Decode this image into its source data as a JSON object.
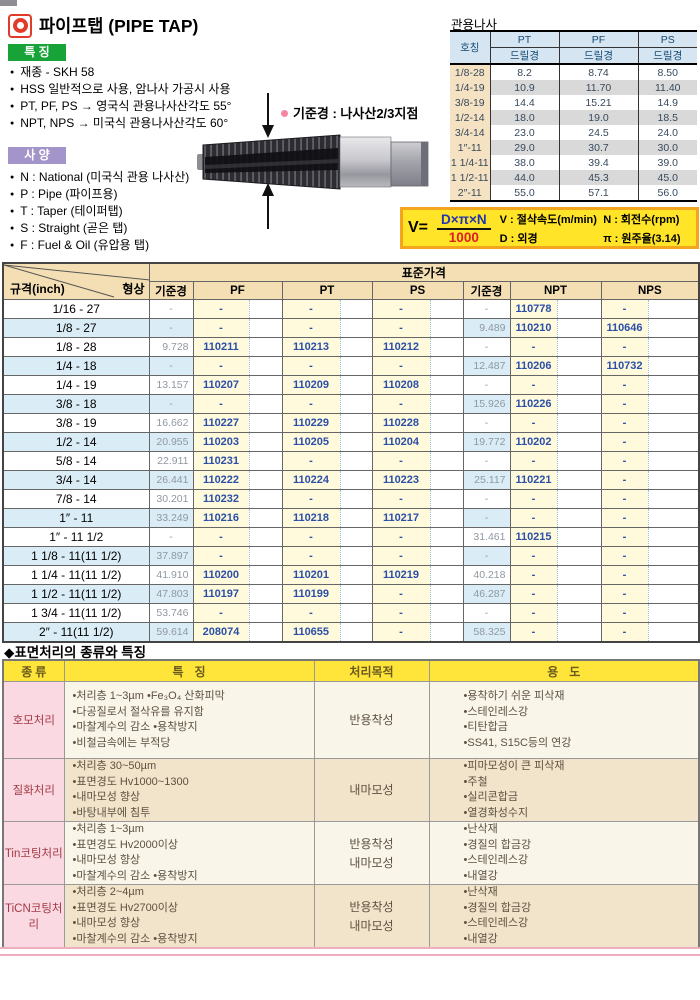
{
  "colors": {
    "brand-red": "#e23c28",
    "badge-green": "#17a338",
    "badge-purple": "#a394c9",
    "formula-yellow": "#ffe427",
    "formula-border": "#f2a51d",
    "formula-blue": "#2336b0",
    "formula-red": "#e01c24",
    "table-header-tan": "#f3dfb3",
    "row-blue": "#daecf6",
    "price-yellow": "#fffadb",
    "code-blue": "#2b4fa8",
    "thread-header-blue": "#d5e5f1",
    "designation-tan": "#f5e2c2",
    "row-gray": "#d9d9d9",
    "surface-header-yellow": "#ffe43a",
    "kind-pink": "#fbd9e2",
    "kind-red": "#a13a46",
    "pink-line": "#eeaebe"
  },
  "header": {
    "title": "파이프탭 (PIPE TAP)"
  },
  "features": {
    "badge": "특 징",
    "items": [
      "재종 - SKH 58",
      "HSS 일반적으로 사용, 암나사 가공시 사용",
      "PT, PF, PS → 영국식 관용나사산각도 55°",
      "NPT, NPS → 미국식 관용나사산각도 60°"
    ]
  },
  "specs": {
    "badge": "사 양",
    "items": [
      "N : National (미국식 관용 나사산)",
      "P : Pipe (파이프용)",
      "T : Taper (테이퍼탭)",
      "S : Straight (곧은 탭)",
      "F : Fuel & Oil (유압용 탭)"
    ]
  },
  "tap_annotation": {
    "label": "기준경 : 나사산2/3지점"
  },
  "thread_table": {
    "title": "관용나사",
    "col_headers": [
      "호칭",
      "PT",
      "PF",
      "PS"
    ],
    "subheader": "드릴경",
    "rows": [
      {
        "name": "1/8-28",
        "pt": "8.2",
        "pf": "8.74",
        "ps": "8.50"
      },
      {
        "name": "1/4-19",
        "pt": "10.9",
        "pf": "11.70",
        "ps": "11.40"
      },
      {
        "name": "3/8-19",
        "pt": "14.4",
        "pf": "15.21",
        "ps": "14.9"
      },
      {
        "name": "1/2-14",
        "pt": "18.0",
        "pf": "19.0",
        "ps": "18.5"
      },
      {
        "name": "3/4-14",
        "pt": "23.0",
        "pf": "24.5",
        "ps": "24.0"
      },
      {
        "name": "1″-11",
        "pt": "29.0",
        "pf": "30.7",
        "ps": "30.0"
      },
      {
        "name": "1 1/4-11",
        "pt": "38.0",
        "pf": "39.4",
        "ps": "39.0"
      },
      {
        "name": "1 1/2-11",
        "pt": "44.0",
        "pf": "45.3",
        "ps": "45.0"
      },
      {
        "name": "2″-11",
        "pt": "55.0",
        "pf": "57.1",
        "ps": "56.0"
      }
    ]
  },
  "formula": {
    "v_label": "V=",
    "numerator": "D×π×N",
    "denominator": "1000",
    "legend": [
      "V : 절삭속도(m/min)",
      "N : 회전수(rpm)",
      "D : 외경",
      "π : 원주율(3.14)"
    ]
  },
  "price_table": {
    "band_title": "표준가격",
    "diag_left": "규격(inch)",
    "diag_right": "형상",
    "headers": {
      "base": "기준경",
      "pf": "PF",
      "pt": "PT",
      "ps": "PS",
      "base2": "기준경",
      "npt": "NPT",
      "nps": "NPS"
    },
    "rows": [
      {
        "spec": "1/16 - 27",
        "base1": "-",
        "pf": "-",
        "pt": "-",
        "ps": "-",
        "base2": "-",
        "npt": "110778",
        "nps": "-"
      },
      {
        "spec": "1/8 - 27",
        "base1": "-",
        "pf": "-",
        "pt": "-",
        "ps": "-",
        "base2": "9.489",
        "npt": "110210",
        "nps": "110646"
      },
      {
        "spec": "1/8 - 28",
        "base1": "9.728",
        "pf": "110211",
        "pt": "110213",
        "ps": "110212",
        "base2": "-",
        "npt": "-",
        "nps": "-"
      },
      {
        "spec": "1/4 - 18",
        "base1": "-",
        "pf": "-",
        "pt": "-",
        "ps": "-",
        "base2": "12.487",
        "npt": "110206",
        "nps": "110732"
      },
      {
        "spec": "1/4 - 19",
        "base1": "13.157",
        "pf": "110207",
        "pt": "110209",
        "ps": "110208",
        "base2": "-",
        "npt": "-",
        "nps": "-"
      },
      {
        "spec": "3/8 - 18",
        "base1": "-",
        "pf": "-",
        "pt": "-",
        "ps": "-",
        "base2": "15.926",
        "npt": "110226",
        "nps": "-"
      },
      {
        "spec": "3/8 - 19",
        "base1": "16.662",
        "pf": "110227",
        "pt": "110229",
        "ps": "110228",
        "base2": "-",
        "npt": "-",
        "nps": "-"
      },
      {
        "spec": "1/2 - 14",
        "base1": "20.955",
        "pf": "110203",
        "pt": "110205",
        "ps": "110204",
        "base2": "19.772",
        "npt": "110202",
        "nps": "-"
      },
      {
        "spec": "5/8 - 14",
        "base1": "22.911",
        "pf": "110231",
        "pt": "-",
        "ps": "-",
        "base2": "-",
        "npt": "-",
        "nps": "-"
      },
      {
        "spec": "3/4 - 14",
        "base1": "26.441",
        "pf": "110222",
        "pt": "110224",
        "ps": "110223",
        "base2": "25.117",
        "npt": "110221",
        "nps": "-"
      },
      {
        "spec": "7/8 - 14",
        "base1": "30.201",
        "pf": "110232",
        "pt": "-",
        "ps": "-",
        "base2": "-",
        "npt": "-",
        "nps": "-"
      },
      {
        "spec": "1″ - 11",
        "base1": "33.249",
        "pf": "110216",
        "pt": "110218",
        "ps": "110217",
        "base2": "-",
        "npt": "-",
        "nps": "-"
      },
      {
        "spec": "1″ - 11 1/2",
        "base1": "-",
        "pf": "-",
        "pt": "-",
        "ps": "-",
        "base2": "31.461",
        "npt": "110215",
        "nps": "-"
      },
      {
        "spec": "1 1/8 - 11(11 1/2)",
        "base1": "37.897",
        "pf": "-",
        "pt": "-",
        "ps": "-",
        "base2": "-",
        "npt": "-",
        "nps": "-"
      },
      {
        "spec": "1 1/4 - 11(11 1/2)",
        "base1": "41.910",
        "pf": "110200",
        "pt": "110201",
        "ps": "110219",
        "base2": "40.218",
        "npt": "-",
        "nps": "-"
      },
      {
        "spec": "1 1/2 - 11(11 1/2)",
        "base1": "47.803",
        "pf": "110197",
        "pt": "110199",
        "ps": "-",
        "base2": "46.287",
        "npt": "-",
        "nps": "-"
      },
      {
        "spec": "1 3/4 - 11(11 1/2)",
        "base1": "53.746",
        "pf": "-",
        "pt": "-",
        "ps": "-",
        "base2": "-",
        "npt": "-",
        "nps": "-"
      },
      {
        "spec": "2″ - 11(11 1/2)",
        "base1": "59.614",
        "pf": "208074",
        "pt": "110655",
        "ps": "-",
        "base2": "58.325",
        "npt": "-",
        "nps": "-"
      }
    ]
  },
  "surface_section": {
    "title": "◆표면처리의 종류와 특징",
    "headers": [
      "종류",
      "특징",
      "처리목적",
      "용도"
    ],
    "rows": [
      {
        "kind": "호모처리",
        "features": [
          "•처리층 1~3µm    •Fe₃O₄ 산화피막",
          "•다공질로서 절삭유를 유지함",
          "•마찰계수의 감소    •용착방지",
          "•비철금속에는 부적당"
        ],
        "purpose": [
          "반용착성"
        ],
        "uses": [
          "•용착하기 쉬운 피삭재",
          "•스테인레스강",
          "•티탄합금",
          "•SS41, S15C등의 연강"
        ]
      },
      {
        "kind": "질화처리",
        "features": [
          "•처리층 30~50µm",
          "•표면경도 Hv1000~1300",
          "•내마모성 향상",
          "•바탕내부에 침투"
        ],
        "purpose": [
          "내마모성"
        ],
        "uses": [
          "•피마모성이 큰 피삭재",
          "•주철",
          "•실리콘합금",
          "•열경화성수지"
        ]
      },
      {
        "kind": "Tin코팅처리",
        "features": [
          "•처리층 1~3µm",
          "•표면경도 Hv2000이상",
          "•내마모성 향상",
          "•마찰계수의 감소    •용착방지"
        ],
        "purpose": [
          "반용착성",
          "내마모성"
        ],
        "uses": [
          "•난삭재",
          "•경질의 합금강",
          "•스테인레스강",
          "•내열강"
        ]
      },
      {
        "kind": "TiCN코팅처리",
        "features": [
          "•처리층 2~4µm",
          "•표면경도 Hv2700이상",
          "•내마모성 향상",
          "•마찰계수의 감소    •용착방지"
        ],
        "purpose": [
          "반용착성",
          "내마모성"
        ],
        "uses": [
          "•난삭재",
          "•경질의 합금강",
          "•스테인레스강",
          "•내열강"
        ]
      }
    ]
  }
}
